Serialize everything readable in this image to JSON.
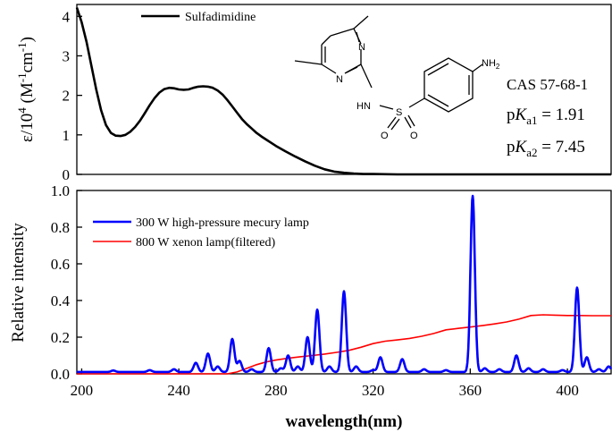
{
  "chart_data": [
    {
      "type": "line",
      "ylabel_parts": [
        "ε/10",
        "4",
        " (M",
        "-1",
        "cm",
        "-1",
        ")"
      ],
      "xlim": [
        198,
        418
      ],
      "ylim": [
        0,
        4.3
      ],
      "yticks": [
        0,
        1,
        2,
        3,
        4
      ],
      "series": [
        {
          "name": "Sulfadimidine",
          "color": "#000000",
          "x": [
            198,
            200,
            202,
            204,
            206,
            208,
            210,
            212,
            214,
            216,
            218,
            220,
            222,
            224,
            226,
            228,
            230,
            232,
            234,
            236,
            238,
            240,
            242,
            244,
            246,
            248,
            250,
            252,
            254,
            256,
            258,
            260,
            262,
            264,
            266,
            268,
            270,
            272,
            274,
            276,
            278,
            280,
            284,
            288,
            292,
            296,
            300,
            304,
            308,
            312,
            316,
            320,
            330,
            340,
            350,
            360,
            380,
            400,
            418
          ],
          "y": [
            4.22,
            3.85,
            3.35,
            2.75,
            2.15,
            1.62,
            1.25,
            1.05,
            0.98,
            0.97,
            1.0,
            1.08,
            1.2,
            1.36,
            1.55,
            1.75,
            1.93,
            2.07,
            2.16,
            2.19,
            2.18,
            2.15,
            2.14,
            2.15,
            2.19,
            2.22,
            2.23,
            2.22,
            2.19,
            2.12,
            2.02,
            1.88,
            1.72,
            1.56,
            1.4,
            1.27,
            1.16,
            1.05,
            0.96,
            0.88,
            0.8,
            0.72,
            0.58,
            0.45,
            0.33,
            0.22,
            0.13,
            0.07,
            0.04,
            0.02,
            0.01,
            0.01,
            0.0,
            0.0,
            0.0,
            0.0,
            0.0,
            0.0,
            0.0
          ]
        }
      ],
      "annotations": {
        "cas": "CAS 57-68-1",
        "pka1": {
          "prefix": "p",
          "k": "K",
          "sub": "a1",
          "value": " = 1.91"
        },
        "pka2": {
          "prefix": "p",
          "k": "K",
          "sub": "a2",
          "value": " = 7.45"
        },
        "molecule_labels": {
          "n1": "N",
          "n2": "N",
          "nh2": "NH",
          "nh2_sub": "2",
          "hn": "HN",
          "s": "S",
          "o1": "O",
          "o2": "O"
        }
      }
    },
    {
      "type": "line",
      "ylabel": "Relative intensity",
      "xlabel": "wavelength(nm)",
      "xlim": [
        198,
        418
      ],
      "ylim": [
        0,
        1.0
      ],
      "xticks": [
        200,
        240,
        280,
        320,
        360,
        400
      ],
      "yticks": [
        0.0,
        0.2,
        0.4,
        0.6,
        0.8,
        1.0
      ],
      "ytick_labels": [
        "0.0",
        "0.2",
        "0.4",
        "0.6",
        "0.8",
        "1.0"
      ],
      "series": [
        {
          "name": "300 W high-pressure mecury lamp",
          "color": "#0000ff",
          "baseline": 0.01,
          "peaks": [
            {
              "x": 213,
              "h": 0.008
            },
            {
              "x": 228,
              "h": 0.01
            },
            {
              "x": 238,
              "h": 0.015
            },
            {
              "x": 247,
              "h": 0.05
            },
            {
              "x": 252,
              "h": 0.1
            },
            {
              "x": 256,
              "h": 0.03
            },
            {
              "x": 262,
              "h": 0.18
            },
            {
              "x": 265,
              "h": 0.06
            },
            {
              "x": 270,
              "h": 0.015
            },
            {
              "x": 277,
              "h": 0.13
            },
            {
              "x": 282,
              "h": 0.02
            },
            {
              "x": 285,
              "h": 0.09
            },
            {
              "x": 289,
              "h": 0.03
            },
            {
              "x": 293,
              "h": 0.19
            },
            {
              "x": 297,
              "h": 0.34
            },
            {
              "x": 302,
              "h": 0.03
            },
            {
              "x": 308,
              "h": 0.44
            },
            {
              "x": 313,
              "h": 0.03
            },
            {
              "x": 320,
              "h": 0.01
            },
            {
              "x": 323,
              "h": 0.08
            },
            {
              "x": 332,
              "h": 0.07
            },
            {
              "x": 341,
              "h": 0.015
            },
            {
              "x": 350,
              "h": 0.01
            },
            {
              "x": 361,
              "h": 0.96
            },
            {
              "x": 366,
              "h": 0.02
            },
            {
              "x": 372,
              "h": 0.015
            },
            {
              "x": 379,
              "h": 0.09
            },
            {
              "x": 384,
              "h": 0.02
            },
            {
              "x": 390,
              "h": 0.015
            },
            {
              "x": 398,
              "h": 0.01
            },
            {
              "x": 404,
              "h": 0.46
            },
            {
              "x": 408,
              "h": 0.08
            },
            {
              "x": 413,
              "h": 0.015
            },
            {
              "x": 417,
              "h": 0.03
            }
          ]
        },
        {
          "name": "800 W xenon lamp(filtered)",
          "color": "#ff0000",
          "x": [
            198,
            260,
            264,
            268,
            272,
            276,
            280,
            285,
            290,
            295,
            300,
            305,
            310,
            315,
            320,
            325,
            330,
            335,
            340,
            345,
            350,
            355,
            360,
            365,
            370,
            375,
            380,
            385,
            390,
            395,
            400,
            405,
            410,
            418
          ],
          "y": [
            0.0,
            0.0,
            0.01,
            0.03,
            0.05,
            0.065,
            0.075,
            0.085,
            0.093,
            0.1,
            0.108,
            0.117,
            0.128,
            0.145,
            0.165,
            0.178,
            0.185,
            0.193,
            0.205,
            0.22,
            0.24,
            0.248,
            0.255,
            0.263,
            0.272,
            0.283,
            0.298,
            0.318,
            0.322,
            0.32,
            0.318,
            0.318,
            0.317,
            0.317
          ]
        }
      ]
    }
  ]
}
